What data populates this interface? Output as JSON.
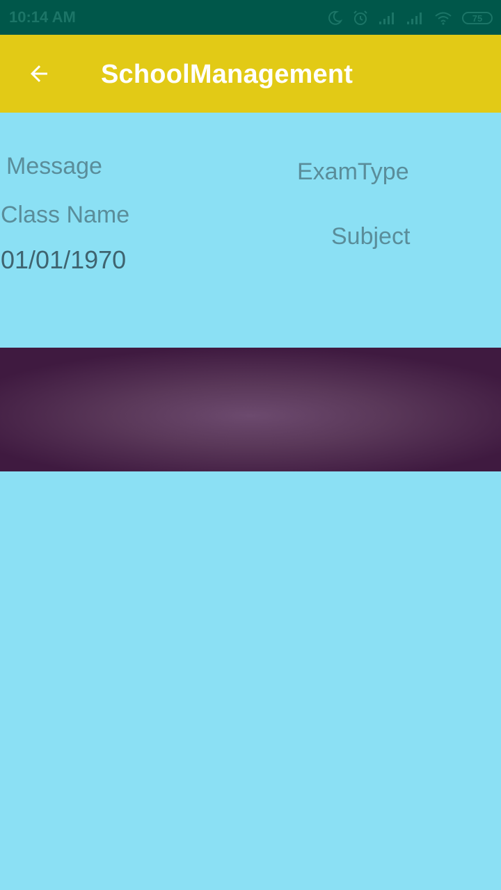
{
  "status_bar": {
    "time": "10:14 AM",
    "battery": "75",
    "icons": [
      "moon-icon",
      "alarm-icon",
      "signal-icon",
      "signal-icon",
      "wifi-icon",
      "battery-icon"
    ]
  },
  "app_bar": {
    "title": "SchoolManagement",
    "back_icon": "arrow-back-icon",
    "background": "#e2ca16"
  },
  "card": {
    "message_label": "Message",
    "class_name_label": "Class Name",
    "date": "01/01/1970",
    "exam_type_label": "ExamType",
    "subject_label": "Subject"
  },
  "colors": {
    "page_background": "#8be0f4",
    "status_bar": "#00574a",
    "banner_center": "#6c4a6e",
    "banner_edge": "#3f1a40"
  }
}
